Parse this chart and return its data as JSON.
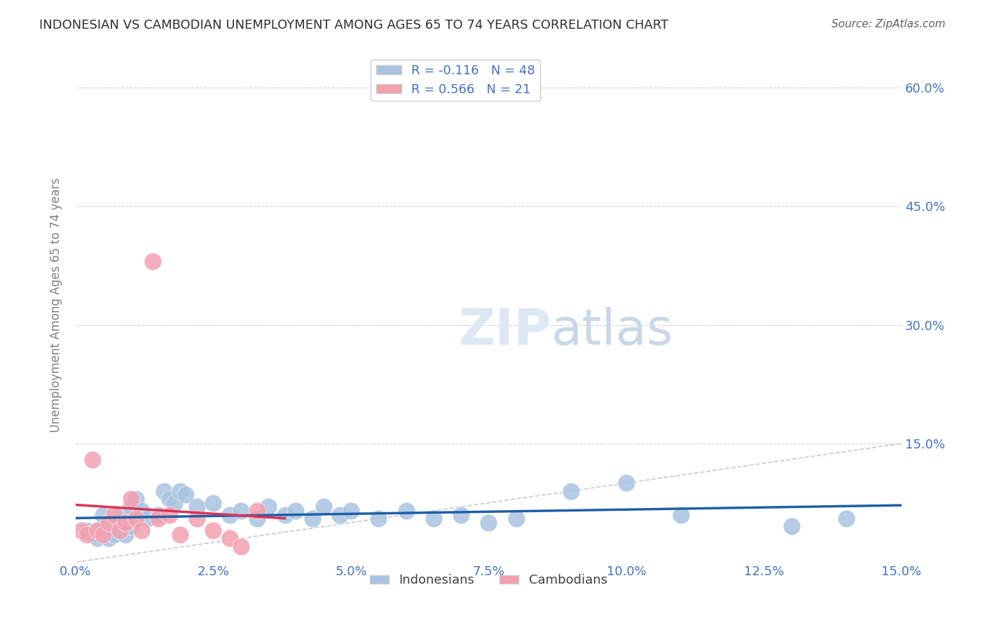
{
  "title": "INDONESIAN VS CAMBODIAN UNEMPLOYMENT AMONG AGES 65 TO 74 YEARS CORRELATION CHART",
  "source": "Source: ZipAtlas.com",
  "ylabel": "Unemployment Among Ages 65 to 74 years",
  "xlim": [
    0.0,
    0.15
  ],
  "ylim": [
    0.0,
    0.65
  ],
  "indonesian_R": -0.116,
  "indonesian_N": 48,
  "cambodian_R": 0.566,
  "cambodian_N": 21,
  "indonesian_color": "#a8c4e0",
  "cambodian_color": "#f4a0b0",
  "indonesian_line_color": "#1f5fa6",
  "cambodian_line_color": "#d9345a",
  "trend_line_color": "#c8c8d8",
  "background_color": "#ffffff",
  "grid_color": "#d0d0d8",
  "title_color": "#303030",
  "source_color": "#606060",
  "legend_text_color": "#4472c4",
  "axis_label_color": "#808080",
  "tick_color": "#4472c4",
  "indonesian_x": [
    0.002,
    0.003,
    0.004,
    0.004,
    0.005,
    0.005,
    0.006,
    0.006,
    0.007,
    0.007,
    0.008,
    0.008,
    0.009,
    0.009,
    0.01,
    0.01,
    0.011,
    0.012,
    0.013,
    0.015,
    0.016,
    0.017,
    0.018,
    0.019,
    0.02,
    0.022,
    0.025,
    0.028,
    0.03,
    0.033,
    0.035,
    0.038,
    0.04,
    0.043,
    0.045,
    0.048,
    0.05,
    0.055,
    0.06,
    0.065,
    0.07,
    0.075,
    0.08,
    0.09,
    0.1,
    0.11,
    0.13,
    0.14
  ],
  "indonesian_y": [
    0.04,
    0.035,
    0.04,
    0.03,
    0.06,
    0.04,
    0.05,
    0.03,
    0.045,
    0.035,
    0.06,
    0.04,
    0.055,
    0.035,
    0.07,
    0.045,
    0.08,
    0.065,
    0.055,
    0.06,
    0.09,
    0.08,
    0.075,
    0.09,
    0.085,
    0.07,
    0.075,
    0.06,
    0.065,
    0.055,
    0.07,
    0.06,
    0.065,
    0.055,
    0.07,
    0.06,
    0.065,
    0.055,
    0.065,
    0.055,
    0.06,
    0.05,
    0.055,
    0.09,
    0.1,
    0.06,
    0.045,
    0.055
  ],
  "cambodian_x": [
    0.001,
    0.002,
    0.003,
    0.004,
    0.005,
    0.006,
    0.007,
    0.008,
    0.009,
    0.01,
    0.011,
    0.012,
    0.014,
    0.015,
    0.017,
    0.019,
    0.022,
    0.025,
    0.028,
    0.03,
    0.033
  ],
  "cambodian_y": [
    0.04,
    0.035,
    0.13,
    0.04,
    0.035,
    0.05,
    0.06,
    0.04,
    0.05,
    0.08,
    0.055,
    0.04,
    0.38,
    0.055,
    0.06,
    0.035,
    0.055,
    0.04,
    0.03,
    0.02,
    0.065
  ]
}
